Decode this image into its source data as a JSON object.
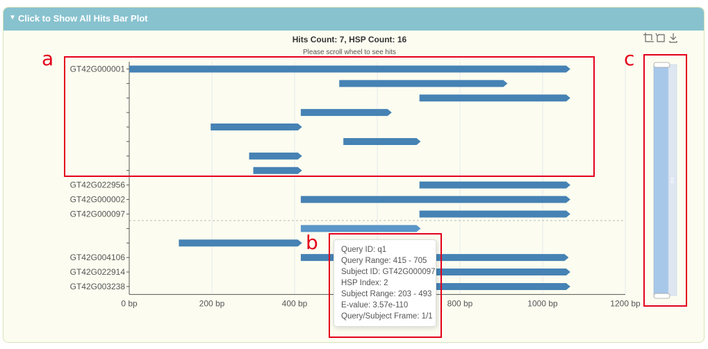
{
  "panel": {
    "header_label": "Click to Show All Hits Bar Plot",
    "toggle_icon": "triangle-down-icon"
  },
  "toolbox": {
    "icons": [
      "zoom-select-icon",
      "zoom-reset-icon",
      "download-icon"
    ]
  },
  "annotations": {
    "a": "a",
    "b": "b",
    "c": "c"
  },
  "colors": {
    "bar": "#4682b4",
    "bar_hover": "#5a96c8",
    "annotation_box": "#e4001b",
    "header": "#88c2cf"
  },
  "chart_data": {
    "type": "bar",
    "orientation": "horizontal",
    "title": "Hits Count: 7, HSP Count: 16",
    "subtitle": "Please scroll wheel to see hits",
    "xlim": [
      0,
      1200
    ],
    "xticks": [
      {
        "value": 0,
        "label": "0 bp"
      },
      {
        "value": 200,
        "label": "200 bp"
      },
      {
        "value": 400,
        "label": "400 bp"
      },
      {
        "value": 600,
        "label": "600 bp"
      },
      {
        "value": 800,
        "label": "800 bp"
      },
      {
        "value": 1000,
        "label": "1000 bp"
      },
      {
        "value": 1200,
        "label": "1200 bp"
      }
    ],
    "rows": [
      {
        "label": "GT42G000001",
        "start": 0,
        "end": 1067
      },
      {
        "label": "",
        "start": 508,
        "end": 915
      },
      {
        "label": "",
        "start": 702,
        "end": 1067
      },
      {
        "label": "",
        "start": 415,
        "end": 635
      },
      {
        "label": "",
        "start": 197,
        "end": 418
      },
      {
        "label": "",
        "start": 518,
        "end": 705
      },
      {
        "label": "",
        "start": 290,
        "end": 418
      },
      {
        "label": "",
        "start": 300,
        "end": 418
      },
      {
        "label": "GT42G022956",
        "start": 702,
        "end": 1067
      },
      {
        "label": "GT42G000002",
        "start": 415,
        "end": 1067
      },
      {
        "label": "GT42G000097",
        "start": 702,
        "end": 1067
      },
      {
        "label": "",
        "start": 415,
        "end": 705,
        "highlighted": true
      },
      {
        "label": "",
        "start": 120,
        "end": 418
      },
      {
        "label": "GT42G004106",
        "start": 415,
        "end": 1063
      },
      {
        "label": "GT42G022914",
        "start": 702,
        "end": 1067
      },
      {
        "label": "GT42G003238",
        "start": 702,
        "end": 1067
      }
    ],
    "scrollbar": {
      "visible_start": 0.0,
      "visible_end": 1.0
    }
  },
  "tooltip": {
    "lines": [
      "Query ID: q1",
      "Query Range: 415 - 705",
      "Subject ID: GT42G000097",
      "HSP Index: 2",
      "Subject Range: 203 - 493",
      "E-value: 3.57e-110",
      "Query/Subject Frame: 1/1"
    ]
  }
}
